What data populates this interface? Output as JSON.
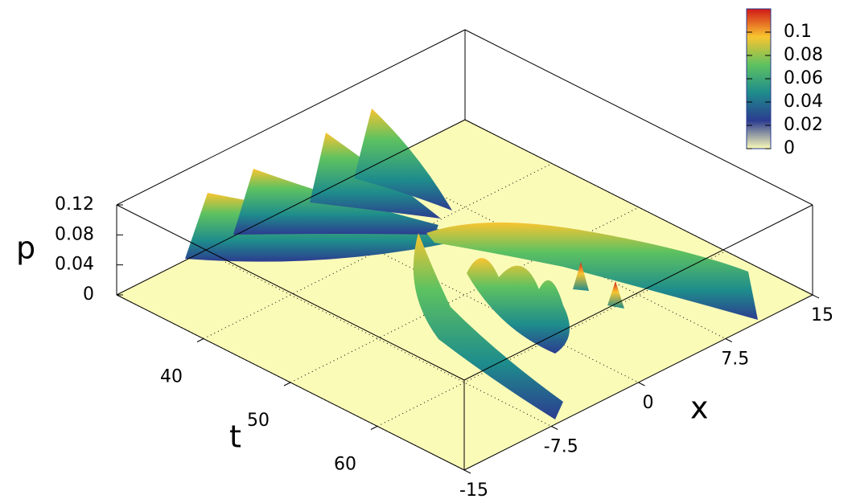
{
  "chart_data": {
    "type": "surface",
    "xlabel": "t",
    "ylabel": "x",
    "zlabel": "p",
    "xlim": [
      30,
      70
    ],
    "xticks": [
      40,
      50,
      60
    ],
    "ylim": [
      -15,
      15
    ],
    "yticks": [
      -15,
      -7.5,
      0,
      7.5,
      15
    ],
    "zlim": [
      0,
      0.12
    ],
    "zticks": [
      0,
      0.04,
      0.08,
      0.12
    ],
    "colorbar": {
      "lim": [
        0,
        0.12
      ],
      "ticks": [
        0,
        0.02,
        0.04,
        0.06,
        0.08,
        0.1
      ]
    },
    "colormap": [
      "#fbfbb8",
      "#2c3c90",
      "#1e8c8c",
      "#5ec260",
      "#f9c430",
      "#d01818"
    ],
    "grid": true
  }
}
